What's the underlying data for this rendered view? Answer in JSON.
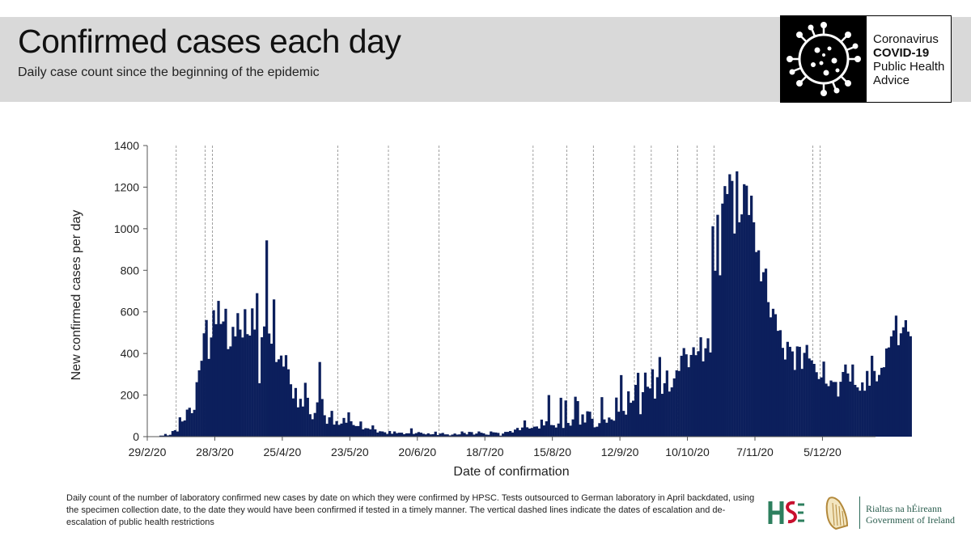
{
  "header": {
    "title": "Confirmed cases each day",
    "subtitle": "Daily case count since the beginning of the epidemic"
  },
  "brand": {
    "line1": "Coronavirus",
    "line2": "COVID-19",
    "line3": "Public Health",
    "line4": "Advice",
    "logo_icon": "virus-icon"
  },
  "footnote": "Daily count of the number of laboratory confirmed new cases by date on which they were confirmed by HPSC. Tests outsourced to German laboratory in April backdated, using the specimen collection date, to the date they would have been confirmed if tested in a timely manner. The vertical dashed lines indicate the dates of escalation and de-escalation of public health restrictions",
  "logos": {
    "hse": "hse-logo",
    "harp": "harp-icon",
    "gov_line1": "Rialtas na hÉireann",
    "gov_line2": "Government of Ireland"
  },
  "colors": {
    "bar": "#0c1f5c",
    "band": "#d9d9d9"
  },
  "chart_data": {
    "type": "bar",
    "title": "",
    "xlabel": "Date of confirmation",
    "ylabel": "New confirmed cases per day",
    "ylim": [
      0,
      1400
    ],
    "yticks": [
      0,
      200,
      400,
      600,
      800,
      1000,
      1200,
      1400
    ],
    "xlim": [
      "2020-02-29",
      "2020-12-26"
    ],
    "xticks": [
      {
        "date": "2020-02-29",
        "label": "29/2/20"
      },
      {
        "date": "2020-03-28",
        "label": "28/3/20"
      },
      {
        "date": "2020-04-25",
        "label": "25/4/20"
      },
      {
        "date": "2020-05-23",
        "label": "23/5/20"
      },
      {
        "date": "2020-06-20",
        "label": "20/6/20"
      },
      {
        "date": "2020-07-18",
        "label": "18/7/20"
      },
      {
        "date": "2020-08-15",
        "label": "15/8/20"
      },
      {
        "date": "2020-09-12",
        "label": "12/9/20"
      },
      {
        "date": "2020-10-10",
        "label": "10/10/20"
      },
      {
        "date": "2020-11-07",
        "label": "7/11/20"
      },
      {
        "date": "2020-12-05",
        "label": "5/12/20"
      }
    ],
    "restriction_dates": [
      "2020-03-12",
      "2020-03-24",
      "2020-03-27",
      "2020-05-18",
      "2020-06-08",
      "2020-06-29",
      "2020-08-07",
      "2020-08-21",
      "2020-09-01",
      "2020-09-18",
      "2020-09-25",
      "2020-10-06",
      "2020-10-14",
      "2020-10-21",
      "2020-12-01",
      "2020-12-04"
    ],
    "series": [
      {
        "start_date": "2020-02-29",
        "values": [
          1,
          0,
          1,
          1,
          1,
          5,
          5,
          13,
          6,
          9,
          27,
          31,
          25,
          93,
          73,
          78,
          130,
          139,
          113,
          129,
          262,
          319,
          365,
          497,
          561,
          374,
          477,
          608,
          541,
          653,
          542,
          554,
          615,
          421,
          434,
          528,
          482,
          594,
          515,
          477,
          613,
          493,
          486,
          617,
          515,
          690,
          257,
          478,
          530,
          944,
          496,
          447,
          660,
          359,
          372,
          390,
          337,
          392,
          324,
          252,
          184,
          234,
          141,
          182,
          145,
          259,
          187,
          108,
          84,
          114,
          165,
          359,
          181,
          103,
          62,
          93,
          124,
          58,
          75,
          57,
          63,
          90,
          67,
          117,
          74,
          56,
          51,
          51,
          73,
          35,
          41,
          40,
          35,
          54,
          35,
          20,
          26,
          25,
          21,
          13,
          27,
          14,
          25,
          17,
          19,
          19,
          12,
          16,
          16,
          40,
          13,
          17,
          22,
          19,
          14,
          11,
          16,
          11,
          12,
          24,
          8,
          15,
          18,
          11,
          11,
          6,
          10,
          15,
          10,
          11,
          25,
          18,
          11,
          23,
          22,
          10,
          15,
          25,
          19,
          16,
          10,
          9,
          25,
          21,
          20,
          18,
          5,
          15,
          23,
          23,
          27,
          20,
          34,
          42,
          31,
          44,
          78,
          45,
          39,
          42,
          48,
          49,
          39,
          82,
          54,
          74,
          200,
          56,
          55,
          44,
          63,
          187,
          42,
          174,
          66,
          53,
          83,
          192,
          171,
          58,
          107,
          68,
          122,
          120,
          86,
          45,
          48,
          65,
          190,
          83,
          67,
          92,
          83,
          77,
          188,
          120,
          296,
          124,
          106,
          218,
          163,
          173,
          249,
          307,
          108,
          214,
          308,
          240,
          232,
          324,
          183,
          286,
          383,
          206,
          257,
          318,
          217,
          237,
          280,
          319,
          316,
          389,
          426,
          396,
          334,
          393,
          430,
          392,
          411,
          478,
          362,
          425,
          473,
          405,
          1012,
          798,
          1067,
          776,
          1121,
          1205,
          1167,
          1262,
          1230,
          977,
          1276,
          1031,
          1069,
          1214,
          1207,
          1066,
          1159,
          1031,
          888,
          896,
          747,
          791,
          808,
          647,
          574,
          615,
          589,
          509,
          512,
          427,
          371,
          456,
          432,
          410,
          321,
          434,
          432,
          326,
          403,
          441,
          376,
          367,
          350,
          310,
          277,
          285,
          361,
          255,
          243,
          270,
          263,
          263,
          193,
          264,
          311,
          347,
          304,
          265,
          347,
          249,
          237,
          221,
          261,
          221,
          316,
          245,
          389,
          316,
          266,
          297,
          331,
          334,
          424,
          429,
          482,
          511,
          582,
          440,
          497,
          526,
          560,
          505,
          483
        ]
      }
    ]
  }
}
